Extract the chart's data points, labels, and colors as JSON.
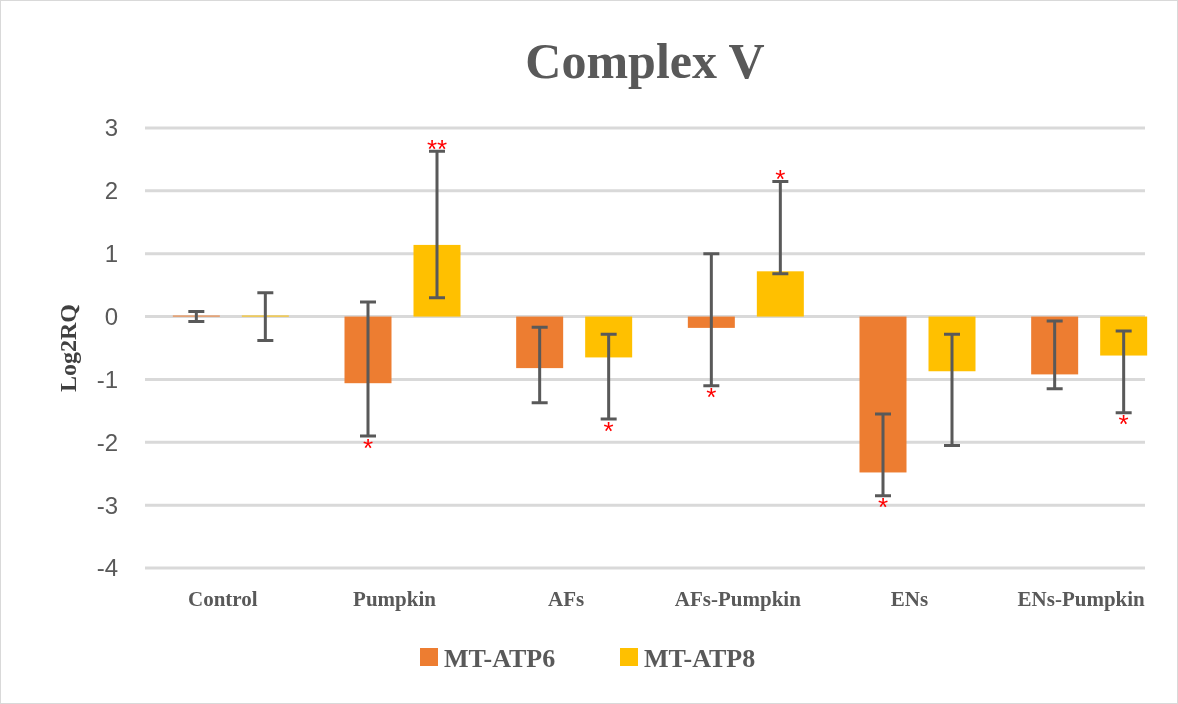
{
  "chart_data": {
    "type": "bar",
    "title": "Complex V",
    "ylabel": "Log2RQ",
    "categories": [
      "Control",
      "Pumpkin",
      "AFs",
      "AFs-Pumpkin",
      "ENs",
      "ENs-Pumpkin"
    ],
    "series": [
      {
        "name": "MT-ATP6",
        "color": "#ed7d31",
        "values": [
          0,
          -1.06,
          -0.82,
          -0.18,
          -2.48,
          -0.92
        ],
        "errors": [
          [
            -0.08,
            0.08
          ],
          [
            -1.9,
            0.23
          ],
          [
            -1.37,
            -0.17
          ],
          [
            -1.1,
            1.0
          ],
          [
            -2.85,
            -1.55
          ],
          [
            -1.15,
            -0.07
          ]
        ],
        "value_labels": [
          null,
          "*",
          null,
          "*",
          "*",
          null
        ]
      },
      {
        "name": "MT-ATP8",
        "color": "#ffc000",
        "values": [
          0,
          1.14,
          -0.65,
          0.72,
          -0.87,
          -0.62
        ],
        "errors": [
          [
            -0.38,
            0.38
          ],
          [
            0.3,
            2.63
          ],
          [
            -1.63,
            -0.28
          ],
          [
            0.68,
            2.15
          ],
          [
            -2.05,
            -0.28
          ],
          [
            -1.53,
            -0.23
          ]
        ],
        "value_labels": [
          null,
          "**",
          "*",
          "*",
          null,
          "*"
        ]
      }
    ],
    "ylim": [
      -4,
      3
    ],
    "yticks": [
      -4,
      -3,
      -2,
      -1,
      0,
      1,
      2,
      3
    ],
    "grid": "y",
    "legend": "bottom"
  }
}
